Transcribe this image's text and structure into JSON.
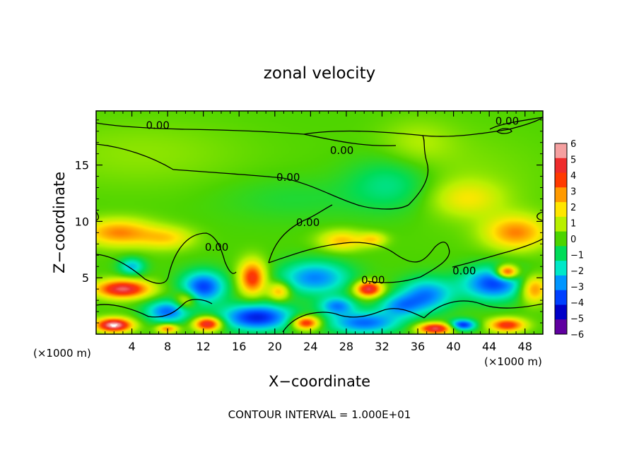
{
  "chart_data": {
    "type": "heatmap",
    "title": "zonal velocity",
    "xlabel": "X−coordinate",
    "ylabel": "Z−coordinate",
    "x_unit": "(×1000 m)",
    "z_unit": "(×1000 m)",
    "xlim": [
      0,
      50
    ],
    "ylim": [
      0,
      19.8
    ],
    "x_ticks": [
      4,
      8,
      12,
      16,
      20,
      24,
      28,
      32,
      36,
      40,
      44,
      48
    ],
    "y_ticks": [
      5,
      10,
      15
    ],
    "footer": "CONTOUR INTERVAL = 1.000E+01",
    "colorbar": {
      "min": -6,
      "max": 6,
      "labels": [
        "6",
        "5",
        "4",
        "3",
        "2",
        "1",
        "0",
        "−1",
        "−2",
        "−3",
        "−4",
        "−5",
        "−6"
      ],
      "colors": [
        "#f5a0a0",
        "#ee2c2c",
        "#ff3a00",
        "#ff9a00",
        "#ffe600",
        "#b8f000",
        "#4cd400",
        "#00dc58",
        "#00e8c8",
        "#0096ff",
        "#0040ff",
        "#0000c8",
        "#6000a0"
      ]
    },
    "contour_labels": [
      {
        "text": "0.00",
        "x": 6.9,
        "z": 18.5
      },
      {
        "text": "0.00",
        "x": 27.5,
        "z": 16.3
      },
      {
        "text": "0.00",
        "x": 21.5,
        "z": 13.9
      },
      {
        "text": "0.00",
        "x": 46.0,
        "z": 18.9
      },
      {
        "text": "0.00",
        "x": 23.7,
        "z": 9.9
      },
      {
        "text": "0.00",
        "x": 13.5,
        "z": 7.7
      },
      {
        "text": "0.00",
        "x": 31.0,
        "z": 4.8
      },
      {
        "text": "0.00",
        "x": 41.2,
        "z": 5.6
      }
    ],
    "features": [
      {
        "v": 0.6,
        "x": 5,
        "z": 16,
        "rx": 12,
        "rz": 3
      },
      {
        "v": 0.5,
        "x": 40,
        "z": 14,
        "rx": 10,
        "rz": 4
      },
      {
        "v": -1.6,
        "x": 33,
        "z": 13.3,
        "rx": 5,
        "rz": 2.5
      },
      {
        "v": -0.6,
        "x": 22,
        "z": 12,
        "rx": 8,
        "rz": 2
      },
      {
        "v": 1.6,
        "x": 41.5,
        "z": 12,
        "rx": 4,
        "rz": 1.6
      },
      {
        "v": 0.8,
        "x": 36,
        "z": 17,
        "rx": 4,
        "rz": 2
      },
      {
        "v": 3.2,
        "x": 2.5,
        "z": 9,
        "rx": 4,
        "rz": 1.2
      },
      {
        "v": 2.0,
        "x": 8,
        "z": 8.5,
        "rx": 3,
        "rz": 1.0
      },
      {
        "v": 3.2,
        "x": 47,
        "z": 9,
        "rx": 3.5,
        "rz": 1.5
      },
      {
        "v": 2.5,
        "x": 27.5,
        "z": 8.3,
        "rx": 2.5,
        "rz": 0.9
      },
      {
        "v": 2.0,
        "x": 31,
        "z": 8.4,
        "rx": 1.5,
        "rz": 0.6
      },
      {
        "v": -4.0,
        "x": 12,
        "z": 4.2,
        "rx": 2.5,
        "rz": 1.4
      },
      {
        "v": -3.2,
        "x": 24.5,
        "z": 5.0,
        "rx": 4,
        "rz": 1.5
      },
      {
        "v": -4.0,
        "x": 44.5,
        "z": 4.5,
        "rx": 3.5,
        "rz": 1.5
      },
      {
        "v": -3.2,
        "x": 37,
        "z": 3.5,
        "rx": 3,
        "rz": 1.5
      },
      {
        "v": 5.5,
        "x": 3,
        "z": 4.0,
        "rx": 3,
        "rz": 0.8
      },
      {
        "v": 5.5,
        "x": 30.5,
        "z": 4.0,
        "rx": 1.5,
        "rz": 0.7
      },
      {
        "v": 4.5,
        "x": 17.5,
        "z": 5.0,
        "rx": 1.5,
        "rz": 1.5
      },
      {
        "v": 5.5,
        "x": 46,
        "z": 5.5,
        "rx": 1.2,
        "rz": 0.6
      },
      {
        "v": 3.5,
        "x": 49,
        "z": 4.0,
        "rx": 1.5,
        "rz": 1.2
      },
      {
        "v": -4.5,
        "x": 18,
        "z": 1.5,
        "rx": 4,
        "rz": 1.2
      },
      {
        "v": -3.5,
        "x": 30,
        "z": 1.0,
        "rx": 4,
        "rz": 1.0
      },
      {
        "v": -3.5,
        "x": 8,
        "z": 2.0,
        "rx": 2.5,
        "rz": 1.0
      },
      {
        "v": 6.5,
        "x": 2,
        "z": 0.8,
        "rx": 2,
        "rz": 0.6
      },
      {
        "v": 5.5,
        "x": 12.5,
        "z": 0.9,
        "rx": 1.5,
        "rz": 0.6
      },
      {
        "v": 5.0,
        "x": 23.5,
        "z": 1.0,
        "rx": 1.5,
        "rz": 0.6
      },
      {
        "v": 5.5,
        "x": 38,
        "z": 0.5,
        "rx": 2,
        "rz": 0.5
      },
      {
        "v": 4.5,
        "x": 46,
        "z": 0.8,
        "rx": 2,
        "rz": 0.6
      },
      {
        "v": 3.5,
        "x": 8,
        "z": 0.5,
        "rx": 1.2,
        "rz": 0.4
      },
      {
        "v": -2.5,
        "x": 34,
        "z": 2.5,
        "rx": 2.5,
        "rz": 1.0
      },
      {
        "v": 2.5,
        "x": 10,
        "z": 3.0,
        "rx": 1.2,
        "rz": 0.8
      },
      {
        "v": -2.5,
        "x": 4,
        "z": 6.0,
        "rx": 1.5,
        "rz": 0.8
      },
      {
        "v": -4.5,
        "x": 41,
        "z": 0.8,
        "rx": 1.5,
        "rz": 0.5
      },
      {
        "v": 3.0,
        "x": 20.5,
        "z": 3.8,
        "rx": 1.2,
        "rz": 0.8
      },
      {
        "v": -3.0,
        "x": 27,
        "z": 2.5,
        "rx": 2.0,
        "rz": 0.8
      }
    ]
  }
}
